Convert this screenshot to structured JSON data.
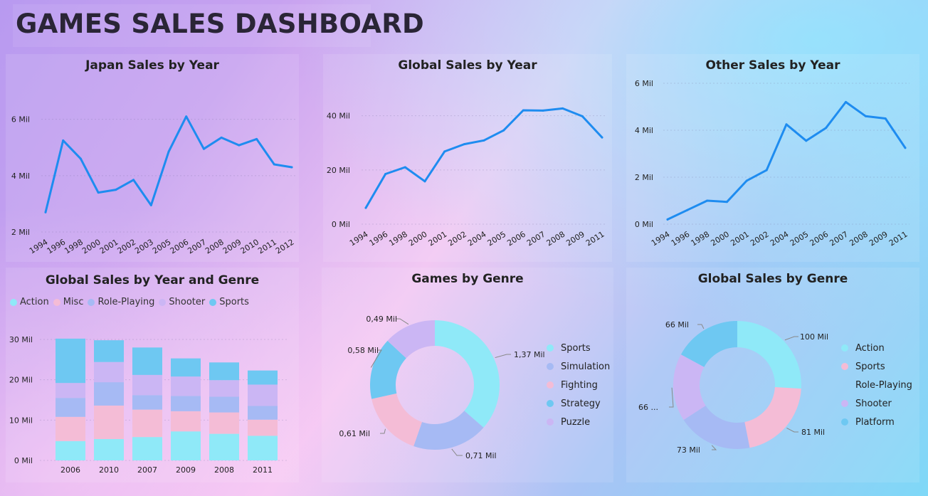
{
  "page_title": "GAMES SALES DASHBOARD",
  "chart_data": [
    {
      "id": "japan",
      "type": "line",
      "title": "Japan Sales by Year",
      "x": [
        "1994",
        "1996",
        "1998",
        "2000",
        "2001",
        "2002",
        "2003",
        "2005",
        "2006",
        "2007",
        "2008",
        "2009",
        "2010",
        "2011",
        "2012"
      ],
      "values": [
        2.7,
        5.25,
        4.6,
        3.4,
        3.5,
        3.85,
        2.95,
        4.85,
        6.1,
        4.95,
        5.35,
        5.08,
        5.3,
        4.4,
        4.3
      ],
      "yticks": [
        "2 Mil",
        "4 Mil",
        "6 Mil"
      ],
      "ytick_values": [
        2,
        4,
        6
      ],
      "ylim": [
        2,
        6.8
      ],
      "unit": "Mil",
      "color": "#1e8cf0"
    },
    {
      "id": "global",
      "type": "line",
      "title": "Global Sales by Year",
      "x": [
        "1994",
        "1996",
        "1998",
        "2000",
        "2001",
        "2002",
        "2004",
        "2005",
        "2006",
        "2007",
        "2008",
        "2009",
        "2011"
      ],
      "values": [
        6,
        18.5,
        21,
        15.8,
        26.8,
        29.5,
        30.9,
        34.6,
        42,
        41.9,
        42.7,
        39.8,
        32
      ],
      "yticks": [
        "0 Mil",
        "20 Mil",
        "40 Mil"
      ],
      "ytick_values": [
        0,
        20,
        40
      ],
      "ylim": [
        0,
        47
      ],
      "unit": "Mil",
      "color": "#1e8cf0"
    },
    {
      "id": "other",
      "type": "line",
      "title": "Other Sales by Year",
      "x": [
        "1994",
        "1996",
        "1998",
        "2000",
        "2001",
        "2002",
        "2004",
        "2005",
        "2006",
        "2007",
        "2008",
        "2009",
        "2011"
      ],
      "values": [
        0.2,
        0.6,
        1.0,
        0.95,
        1.85,
        2.3,
        4.25,
        3.55,
        4.1,
        5.2,
        4.6,
        4.5,
        3.25
      ],
      "yticks": [
        "0 Mil",
        "2 Mil",
        "4 Mil",
        "6 Mil"
      ],
      "ytick_values": [
        0,
        2,
        4,
        6
      ],
      "ylim": [
        0,
        6
      ],
      "unit": "Mil",
      "color": "#1e8cf0"
    },
    {
      "id": "stacked",
      "type": "bar",
      "stacked": true,
      "title": "Global Sales by Year and Genre",
      "categories": [
        "2006",
        "2010",
        "2007",
        "2009",
        "2008",
        "2011"
      ],
      "series": [
        {
          "name": "Action",
          "color": "#8fe9f8",
          "values": [
            4.8,
            5.3,
            5.8,
            7.2,
            6.6,
            6.1
          ]
        },
        {
          "name": "Misc",
          "color": "#f4bcd6",
          "values": [
            6.0,
            8.3,
            6.8,
            5.0,
            5.3,
            4.0
          ]
        },
        {
          "name": "Role-Playing",
          "color": "#a6baf4",
          "values": [
            4.7,
            5.8,
            3.6,
            3.8,
            3.9,
            3.4
          ]
        },
        {
          "name": "Shooter",
          "color": "#cbb6f4",
          "values": [
            3.7,
            5.0,
            5.0,
            4.8,
            4.1,
            5.3
          ]
        },
        {
          "name": "Sports",
          "color": "#6ec8f2",
          "values": [
            11.0,
            5.4,
            6.8,
            4.5,
            4.4,
            3.5
          ]
        }
      ],
      "yticks": [
        "0 Mil",
        "10 Mil",
        "20 Mil",
        "30 Mil"
      ],
      "ytick_values": [
        0,
        10,
        20,
        30
      ],
      "ylim": [
        0,
        30
      ],
      "legend_position": "top-left"
    },
    {
      "id": "games_genre",
      "type": "pie",
      "donut": true,
      "title": "Games by Genre",
      "labels": [
        "Sports",
        "Simulation",
        "Fighting",
        "Strategy",
        "Puzzle"
      ],
      "values": [
        1.37,
        0.71,
        0.61,
        0.58,
        0.49
      ],
      "data_labels": [
        "1,37 Mil",
        "0,71 Mil",
        "0,61 Mil",
        "0,58 Mil",
        "0,49 Mil"
      ],
      "colors": [
        "#8fe9f8",
        "#a6baf4",
        "#f4bcd6",
        "#6ec8f2",
        "#cbb6f4"
      ],
      "legend_position": "right"
    },
    {
      "id": "global_genre",
      "type": "pie",
      "donut": true,
      "title": "Global Sales by Genre",
      "labels": [
        "Action",
        "Sports",
        "Role-Playing",
        "Shooter",
        "Platform"
      ],
      "values": [
        100,
        81,
        73,
        66,
        66
      ],
      "data_labels": [
        "100 Mil",
        "81 Mil",
        "73 Mil",
        "66 ...",
        "66 Mil"
      ],
      "colors": [
        "#8fe9f8",
        "#f4bcd6",
        "#a6baf4",
        "#cbb6f4",
        "#6ec8f2"
      ],
      "legend_colors": [
        "#8fe9f8",
        "#f4bcd6",
        null,
        "#cbb6f4",
        "#6ec8f2"
      ],
      "legend_position": "right"
    }
  ]
}
